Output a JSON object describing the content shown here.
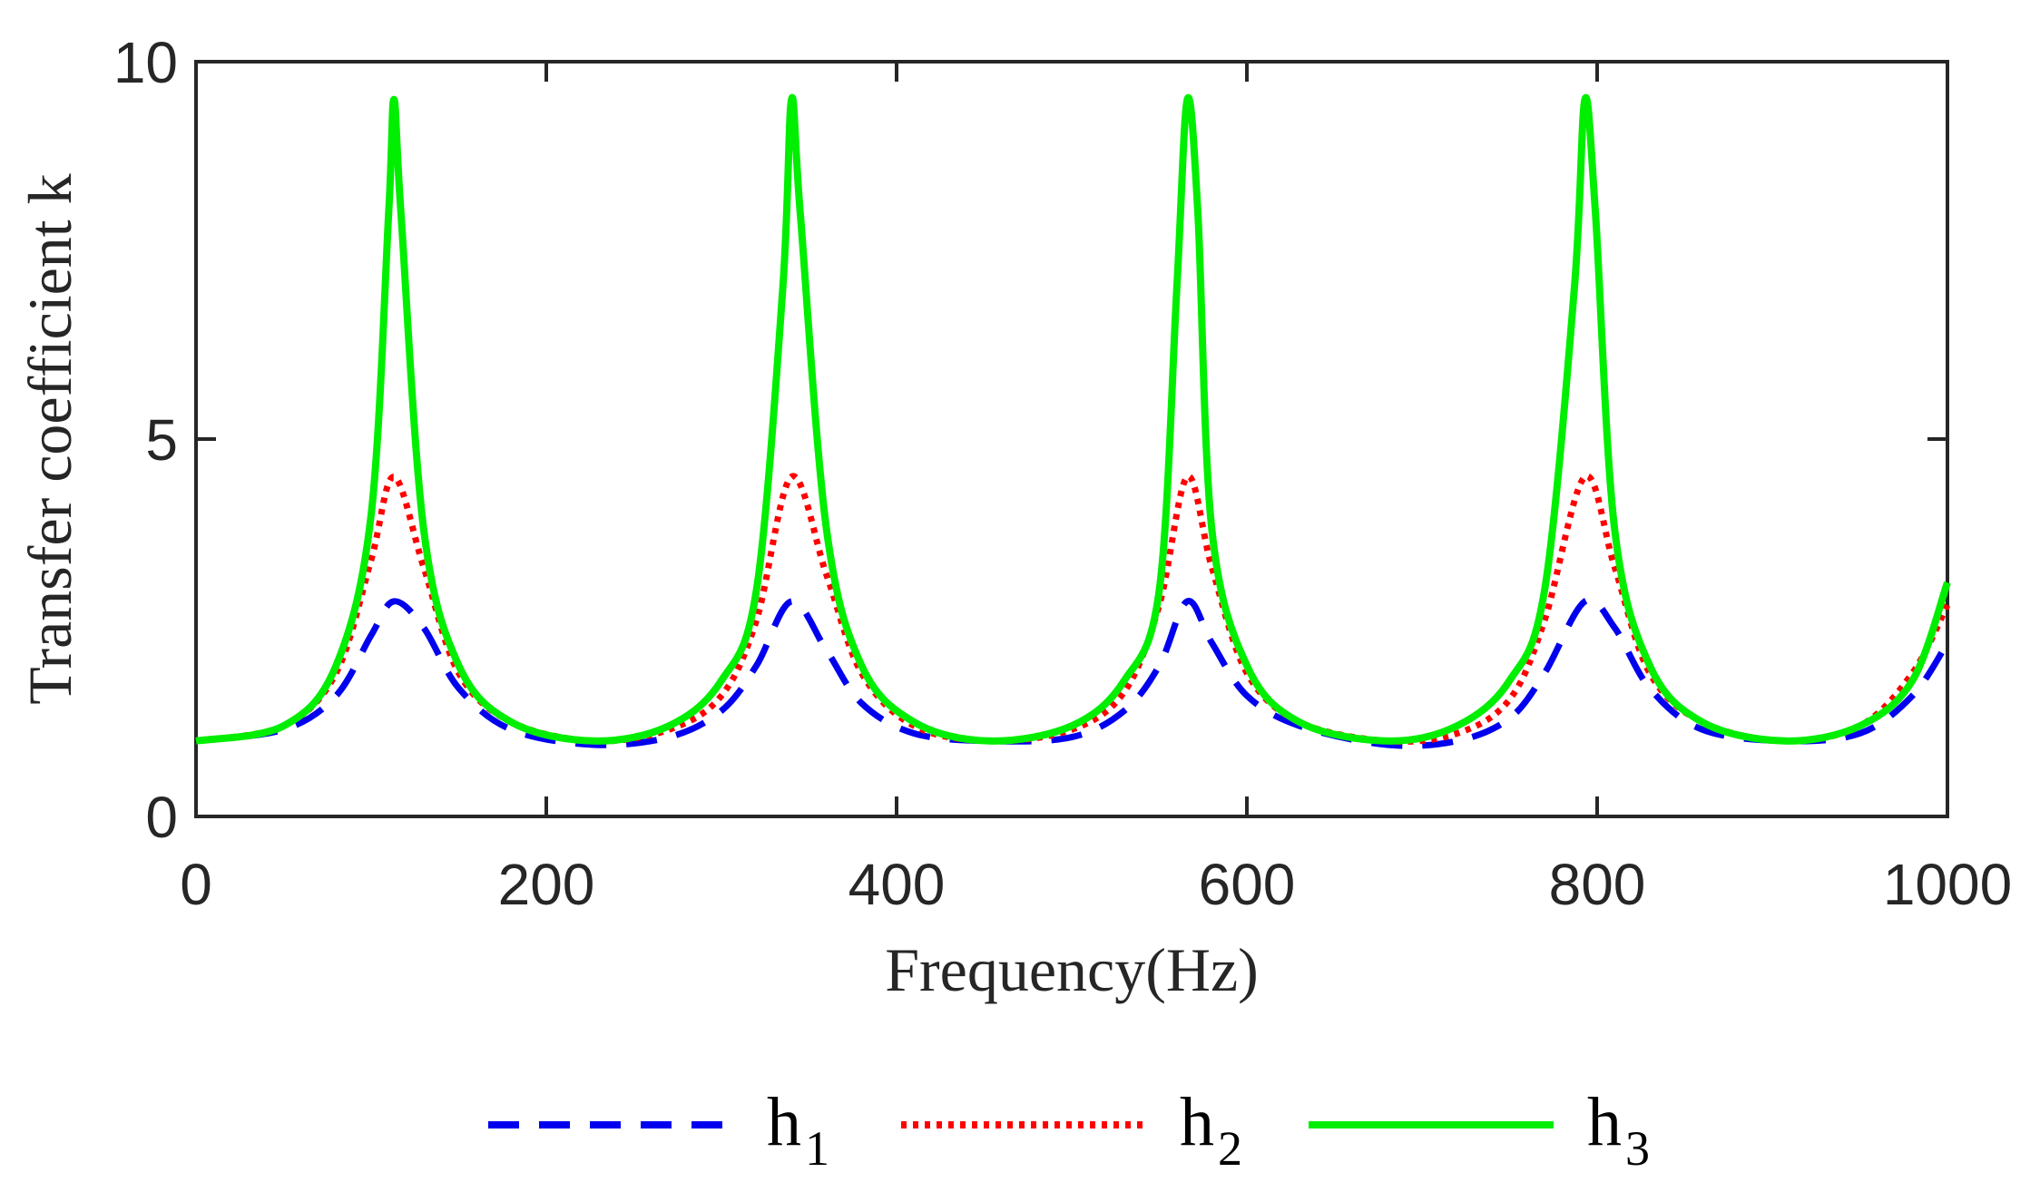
{
  "chart_data": {
    "type": "line",
    "title": "",
    "xlabel": "Frequency(Hz)",
    "ylabel": "Transfer coefficient k",
    "xlim": [
      0,
      1000
    ],
    "ylim": [
      0,
      10
    ],
    "xticks": [
      0,
      200,
      400,
      600,
      800,
      1000
    ],
    "xtick_labels": [
      "0",
      "200",
      "400",
      "600",
      "800",
      "1000"
    ],
    "yticks": [
      0,
      5,
      10
    ],
    "ytick_labels": [
      "0",
      "5",
      "10"
    ],
    "grid": false,
    "legend_position": "bottom",
    "series": [
      {
        "name": "h1",
        "label_main": "h",
        "label_sub": "1",
        "color": "#0000ee",
        "style": "dashed",
        "x": [
          0,
          50,
          80,
          100,
          113,
          130,
          150,
          180,
          227,
          270,
          300,
          320,
          340,
          360,
          380,
          410,
          453,
          500,
          530,
          550,
          566,
          580,
          600,
          630,
          680,
          720,
          750,
          770,
          793,
          810,
          830,
          860,
          907,
          950,
          980,
          1000
        ],
        "y": [
          1.0,
          1.15,
          1.6,
          2.4,
          2.85,
          2.5,
          1.7,
          1.15,
          0.95,
          1.05,
          1.4,
          2.0,
          2.85,
          2.2,
          1.5,
          1.1,
          1.0,
          1.05,
          1.4,
          2.0,
          2.85,
          2.3,
          1.6,
          1.2,
          0.95,
          1.0,
          1.3,
          1.9,
          2.85,
          2.5,
          1.7,
          1.15,
          1.0,
          1.1,
          1.6,
          2.3
        ]
      },
      {
        "name": "h2",
        "label_main": "h",
        "label_sub": "2",
        "color": "#ff0000",
        "style": "dotted",
        "x": [
          0,
          50,
          80,
          100,
          113,
          130,
          150,
          180,
          227,
          270,
          300,
          320,
          340,
          360,
          380,
          410,
          453,
          500,
          530,
          550,
          566,
          580,
          600,
          630,
          680,
          720,
          750,
          770,
          793,
          810,
          830,
          860,
          907,
          950,
          980,
          1000
        ],
        "y": [
          1.0,
          1.2,
          1.9,
          3.4,
          4.5,
          3.3,
          1.9,
          1.25,
          1.0,
          1.15,
          1.6,
          2.6,
          4.5,
          3.2,
          1.9,
          1.2,
          1.0,
          1.15,
          1.65,
          2.8,
          4.5,
          3.3,
          1.9,
          1.25,
          1.0,
          1.1,
          1.55,
          2.6,
          4.5,
          3.3,
          1.9,
          1.25,
          1.0,
          1.2,
          1.9,
          2.8
        ]
      },
      {
        "name": "h3",
        "label_main": "h",
        "label_sub": "3",
        "color": "#00ee00",
        "style": "solid",
        "x": [
          0,
          50,
          80,
          100,
          110,
          113,
          117,
          130,
          150,
          180,
          227,
          270,
          300,
          320,
          335,
          340,
          345,
          360,
          380,
          410,
          453,
          500,
          530,
          550,
          560,
          566,
          572,
          580,
          600,
          630,
          680,
          720,
          750,
          770,
          787,
          793,
          799,
          810,
          830,
          860,
          907,
          950,
          980,
          1000
        ],
        "y": [
          1.0,
          1.2,
          2.0,
          4.0,
          8.0,
          9.5,
          8.0,
          3.8,
          2.0,
          1.25,
          1.0,
          1.2,
          1.8,
          3.0,
          7.0,
          9.5,
          8.0,
          3.8,
          2.0,
          1.25,
          1.0,
          1.2,
          1.8,
          3.0,
          7.0,
          9.5,
          8.0,
          3.8,
          2.0,
          1.25,
          1.0,
          1.2,
          1.8,
          3.0,
          7.0,
          9.5,
          8.0,
          3.8,
          2.0,
          1.25,
          1.0,
          1.2,
          1.8,
          3.1
        ]
      }
    ]
  }
}
